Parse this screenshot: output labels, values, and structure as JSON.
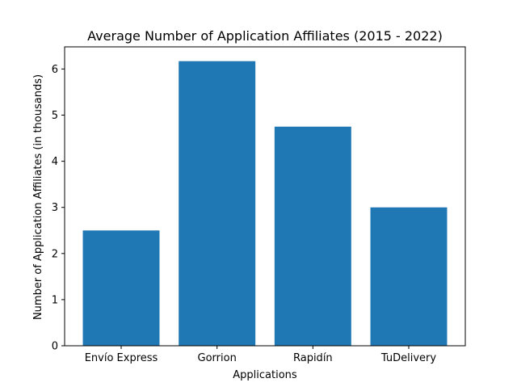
{
  "chart_data": {
    "type": "bar",
    "title": "Average Number of Application Affiliates (2015 - 2022)",
    "xlabel": "Applications",
    "ylabel": "Number of Application Affiliates (in thousands)",
    "categories": [
      "Envío Express",
      "Gorrion",
      "Rapidín",
      "TuDelivery"
    ],
    "values": [
      2.5,
      6.17,
      4.75,
      3.0
    ],
    "ylim": [
      0,
      6.48
    ],
    "yticks": [
      0,
      1,
      2,
      3,
      4,
      5,
      6
    ],
    "grid": false,
    "legend": "none",
    "bar_color": "#1f77b4"
  }
}
